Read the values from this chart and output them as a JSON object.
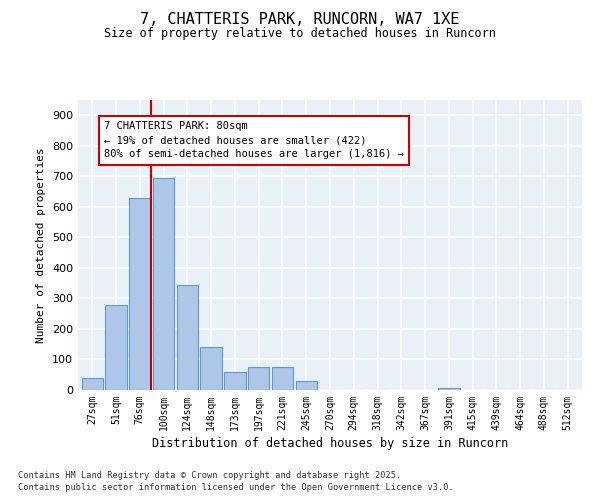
{
  "title": "7, CHATTERIS PARK, RUNCORN, WA7 1XE",
  "subtitle": "Size of property relative to detached houses in Runcorn",
  "xlabel": "Distribution of detached houses by size in Runcorn",
  "ylabel": "Number of detached properties",
  "bar_values": [
    40,
    280,
    630,
    695,
    345,
    140,
    60,
    75,
    75,
    30,
    0,
    0,
    0,
    0,
    0,
    5,
    0,
    0,
    0,
    0,
    0
  ],
  "categories": [
    "27sqm",
    "51sqm",
    "76sqm",
    "100sqm",
    "124sqm",
    "148sqm",
    "173sqm",
    "197sqm",
    "221sqm",
    "245sqm",
    "270sqm",
    "294sqm",
    "318sqm",
    "342sqm",
    "367sqm",
    "391sqm",
    "415sqm",
    "439sqm",
    "464sqm",
    "488sqm",
    "512sqm"
  ],
  "bar_color": "#aec6e8",
  "bar_edge_color": "#5b9bd5",
  "bg_color": "#eaf0f8",
  "grid_color": "#ffffff",
  "vline_x_index": 2,
  "annotation_text": "7 CHATTERIS PARK: 80sqm\n← 19% of detached houses are smaller (422)\n80% of semi-detached houses are larger (1,816) →",
  "annotation_box_color": "#ffffff",
  "annotation_box_edge": "#cc0000",
  "ylim": [
    0,
    950
  ],
  "yticks": [
    0,
    100,
    200,
    300,
    400,
    500,
    600,
    700,
    800,
    900
  ],
  "footer_line1": "Contains HM Land Registry data © Crown copyright and database right 2025.",
  "footer_line2": "Contains public sector information licensed under the Open Government Licence v3.0."
}
